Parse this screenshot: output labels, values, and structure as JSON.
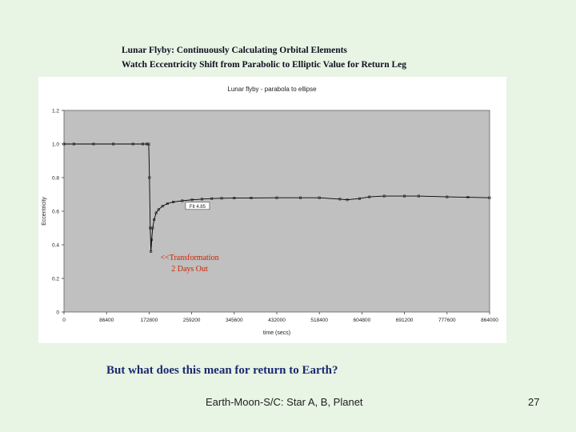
{
  "slide": {
    "title_line1": "Lunar Flyby: Continuously Calculating Orbital Elements",
    "title_line2": "Watch Eccentricity Shift from Parabolic to Elliptic Value for Return Leg",
    "question": "But what does this mean for return to Earth?",
    "footer": "Earth-Moon-S/C: Star A, B, Planet",
    "page_number": "27"
  },
  "colors": {
    "background": "#e8f4e4",
    "plot_area": "#c0c0c0",
    "series_line": "#000000",
    "annotation": "#cc2200",
    "question_text": "#1a2a6e"
  },
  "chart_data": {
    "type": "line",
    "title": "Lunar flyby - parabola to ellipse",
    "xlabel": "time (secs)",
    "ylabel": "Eccentricity",
    "xlim": [
      0,
      864000
    ],
    "ylim": [
      0,
      1.2
    ],
    "x_ticks": [
      "0",
      "86400",
      "172800",
      "259200",
      "345600",
      "432000",
      "518400",
      "604800",
      "691200",
      "777600",
      "864000"
    ],
    "y_ticks": [
      "0",
      "0.2",
      "0.4",
      "0.6",
      "0.8",
      "1.0",
      "1.2"
    ],
    "grid": false,
    "series": [
      {
        "name": "",
        "x": [
          0,
          20000,
          60000,
          100000,
          140000,
          160000,
          168000,
          172000,
          173500,
          175000,
          176500,
          178000,
          180000,
          183000,
          187000,
          192000,
          200000,
          210000,
          222000,
          240000,
          260000,
          280000,
          300000,
          320000,
          345600,
          380000,
          432000,
          480000,
          518400,
          560000,
          575000,
          600000,
          620000,
          650000,
          691200,
          720000,
          777600,
          820000,
          864000
        ],
        "y": [
          1.0,
          1.0,
          1.0,
          1.0,
          1.0,
          1.0,
          1.0,
          1.0,
          0.8,
          0.5,
          0.36,
          0.43,
          0.5,
          0.55,
          0.59,
          0.61,
          0.63,
          0.645,
          0.655,
          0.662,
          0.668,
          0.672,
          0.675,
          0.677,
          0.678,
          0.679,
          0.68,
          0.68,
          0.68,
          0.672,
          0.668,
          0.675,
          0.685,
          0.69,
          0.69,
          0.69,
          0.685,
          0.683,
          0.68
        ]
      }
    ],
    "annotations": [
      {
        "text_line1": "<<Transformation",
        "text_line2": "2 Days Out",
        "x": 255000,
        "y": 0.31
      }
    ],
    "label_box": {
      "text": "Fit 4.85",
      "x": 250000,
      "y": 0.62
    }
  }
}
